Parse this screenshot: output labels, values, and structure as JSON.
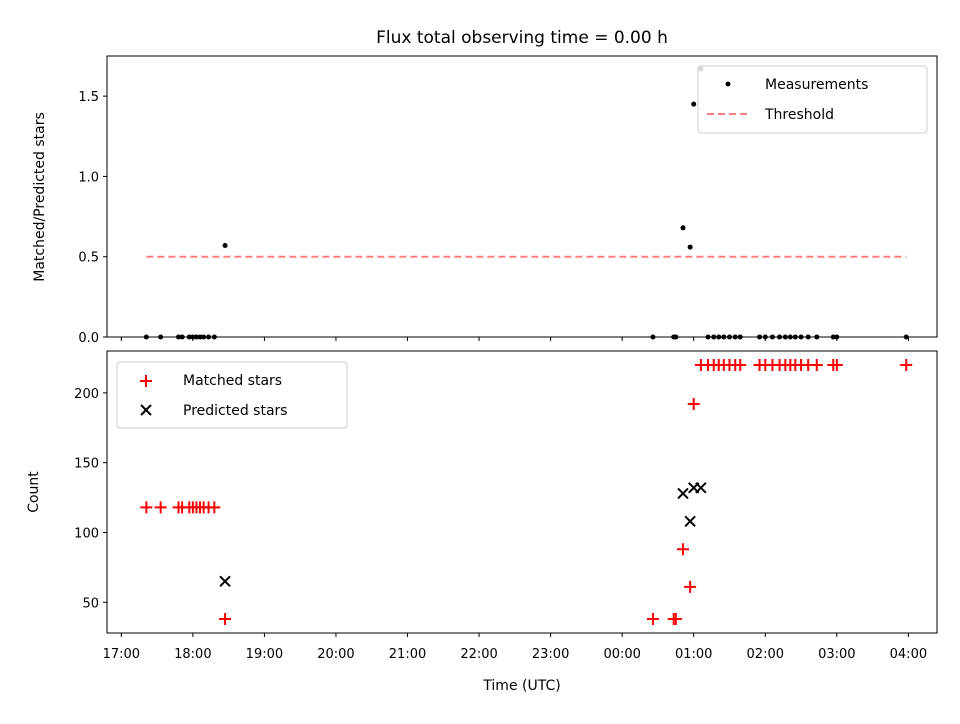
{
  "chart_data": [
    {
      "type": "scatter",
      "panel": "top",
      "title": "Flux total observing time = 0.00 h",
      "xlabel": "",
      "ylabel": "Matched/Predicted stars",
      "xlim": [
        16.8,
        28.4
      ],
      "ylim": [
        0.0,
        1.75
      ],
      "yticks": [
        0.0,
        0.5,
        1.0,
        1.5
      ],
      "ytick_labels": [
        "0.0",
        "0.5",
        "1.0",
        "1.5"
      ],
      "legend_position": "top-right",
      "series": [
        {
          "name": "Measurements",
          "kind": "points",
          "color": "#000000",
          "x": [
            17.35,
            17.55,
            17.8,
            17.85,
            17.95,
            18.0,
            18.05,
            18.1,
            18.15,
            18.22,
            18.3,
            18.45,
            24.43,
            24.72,
            24.75,
            24.85,
            24.95,
            25.0,
            25.1,
            25.2,
            25.28,
            25.35,
            25.42,
            25.5,
            25.58,
            25.65,
            25.92,
            26.0,
            26.1,
            26.2,
            26.28,
            26.35,
            26.42,
            26.5,
            26.6,
            26.72,
            26.95,
            27.0,
            27.97
          ],
          "y": [
            0,
            0,
            0,
            0,
            0,
            0,
            0,
            0,
            0,
            0,
            0,
            0.57,
            0,
            0,
            0,
            0.68,
            0.56,
            1.45,
            1.67,
            0,
            0,
            0,
            0,
            0,
            0,
            0,
            0,
            0,
            0,
            0,
            0,
            0,
            0,
            0,
            0,
            0,
            0,
            0,
            0
          ]
        },
        {
          "name": "Threshold",
          "kind": "dashed-line",
          "color": "#ff7f7f",
          "x": [
            17.35,
            27.97
          ],
          "y": [
            0.5,
            0.5
          ]
        }
      ]
    },
    {
      "type": "scatter",
      "panel": "bottom",
      "title": "",
      "xlabel": "Time (UTC)",
      "ylabel": "Count",
      "xlim": [
        16.8,
        28.4
      ],
      "ylim": [
        28,
        230
      ],
      "yticks": [
        50,
        100,
        150,
        200
      ],
      "ytick_labels": [
        "50",
        "100",
        "150",
        "200"
      ],
      "xticks": [
        17,
        18,
        19,
        20,
        21,
        22,
        23,
        24,
        25,
        26,
        27,
        28
      ],
      "xtick_labels": [
        "17:00",
        "18:00",
        "19:00",
        "20:00",
        "21:00",
        "22:00",
        "23:00",
        "00:00",
        "01:00",
        "02:00",
        "03:00",
        "04:00"
      ],
      "legend_position": "top-left",
      "series": [
        {
          "name": "Matched stars",
          "marker": "+",
          "color": "#ff0000",
          "x": [
            17.35,
            17.55,
            17.8,
            17.85,
            17.95,
            18.0,
            18.05,
            18.1,
            18.15,
            18.22,
            18.3,
            18.45,
            24.43,
            24.72,
            24.75,
            24.85,
            24.95,
            25.0,
            25.1,
            25.2,
            25.28,
            25.35,
            25.42,
            25.5,
            25.58,
            25.65,
            25.92,
            26.0,
            26.1,
            26.2,
            26.28,
            26.35,
            26.42,
            26.5,
            26.6,
            26.72,
            26.95,
            27.0,
            27.97
          ],
          "y": [
            118,
            118,
            118,
            118,
            118,
            118,
            118,
            118,
            118,
            118,
            118,
            38,
            38,
            38,
            38,
            88,
            61,
            192,
            220,
            220,
            220,
            220,
            220,
            220,
            220,
            220,
            220,
            220,
            220,
            220,
            220,
            220,
            220,
            220,
            220,
            220,
            220,
            220,
            220
          ]
        },
        {
          "name": "Predicted stars",
          "marker": "x",
          "color": "#000000",
          "x": [
            18.45,
            24.85,
            24.95,
            25.0,
            25.1
          ],
          "y": [
            65,
            128,
            108,
            132,
            132
          ]
        }
      ]
    }
  ]
}
